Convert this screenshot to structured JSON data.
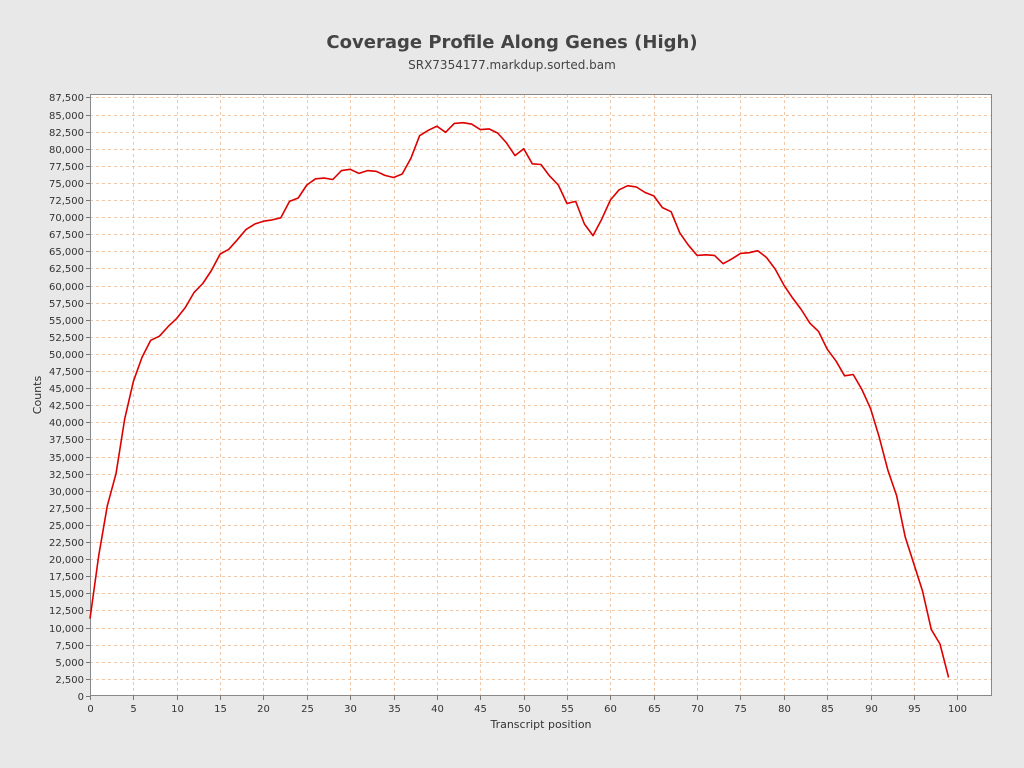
{
  "chart_data": {
    "type": "line",
    "title": "Coverage Profile Along Genes (High)",
    "subtitle": "SRX7354177.markdup.sorted.bam",
    "xlabel": "Transcript position",
    "ylabel": "Counts",
    "xlim": [
      0,
      104
    ],
    "ylim": [
      0,
      88000
    ],
    "x_ticks": [
      0,
      5,
      10,
      15,
      20,
      25,
      30,
      35,
      40,
      45,
      50,
      55,
      60,
      65,
      70,
      75,
      80,
      85,
      90,
      95,
      100
    ],
    "y_ticks": [
      0,
      2500,
      5000,
      7500,
      10000,
      12500,
      15000,
      17500,
      20000,
      22500,
      25000,
      27500,
      30000,
      32500,
      35000,
      37500,
      40000,
      42500,
      45000,
      47500,
      50000,
      52500,
      55000,
      57500,
      60000,
      62500,
      65000,
      67500,
      70000,
      72500,
      75000,
      77500,
      80000,
      82500,
      85000,
      87500
    ],
    "grid": true,
    "legend": "none",
    "line_color": "#dd0000",
    "series": [
      {
        "x": [
          0,
          1,
          2,
          3,
          4,
          5,
          6,
          7,
          8,
          9,
          10,
          11,
          12,
          13,
          14,
          15,
          16,
          17,
          18,
          19,
          20,
          21,
          22,
          23,
          24,
          25,
          26,
          27,
          28,
          29,
          30,
          31,
          32,
          33,
          34,
          35,
          36,
          37,
          38,
          39,
          40,
          41,
          42,
          43,
          44,
          45,
          46,
          47,
          48,
          49,
          50,
          51,
          52,
          53,
          54,
          55,
          56,
          57,
          58,
          59,
          60,
          61,
          62,
          63,
          64,
          65,
          66,
          67,
          68,
          69,
          70,
          71,
          72,
          73,
          74,
          75,
          76,
          77,
          78,
          79,
          80,
          81,
          82,
          83,
          84,
          85,
          86,
          87,
          88,
          89,
          90,
          91,
          92,
          93,
          94,
          95,
          96,
          97,
          98,
          99
        ],
        "values": [
          11300,
          20500,
          27800,
          32500,
          40500,
          46000,
          49500,
          52000,
          52600,
          54000,
          55200,
          56800,
          59000,
          60300,
          62200,
          64600,
          65300,
          66700,
          68200,
          69000,
          69400,
          69600,
          69900,
          72300,
          72800,
          74700,
          75600,
          75700,
          75500,
          76800,
          77000,
          76400,
          76800,
          76700,
          76100,
          75800,
          76300,
          78600,
          81900,
          82700,
          83300,
          82400,
          83700,
          83800,
          83600,
          82800,
          82900,
          82300,
          80900,
          79000,
          80000,
          77800,
          77700,
          76000,
          74700,
          72000,
          72300,
          69000,
          67300,
          69700,
          72500,
          74000,
          74600,
          74400,
          73600,
          73100,
          71400,
          70800,
          67700,
          65900,
          64400,
          64500,
          64400,
          63200,
          63900,
          64700,
          64800,
          65100,
          64100,
          62400,
          60100,
          58200,
          56500,
          54500,
          53300,
          50700,
          49000,
          46800,
          47000,
          44800,
          42000,
          37800,
          33000,
          29300,
          23200,
          19300,
          15300,
          9700,
          7600,
          2700
        ]
      }
    ]
  }
}
